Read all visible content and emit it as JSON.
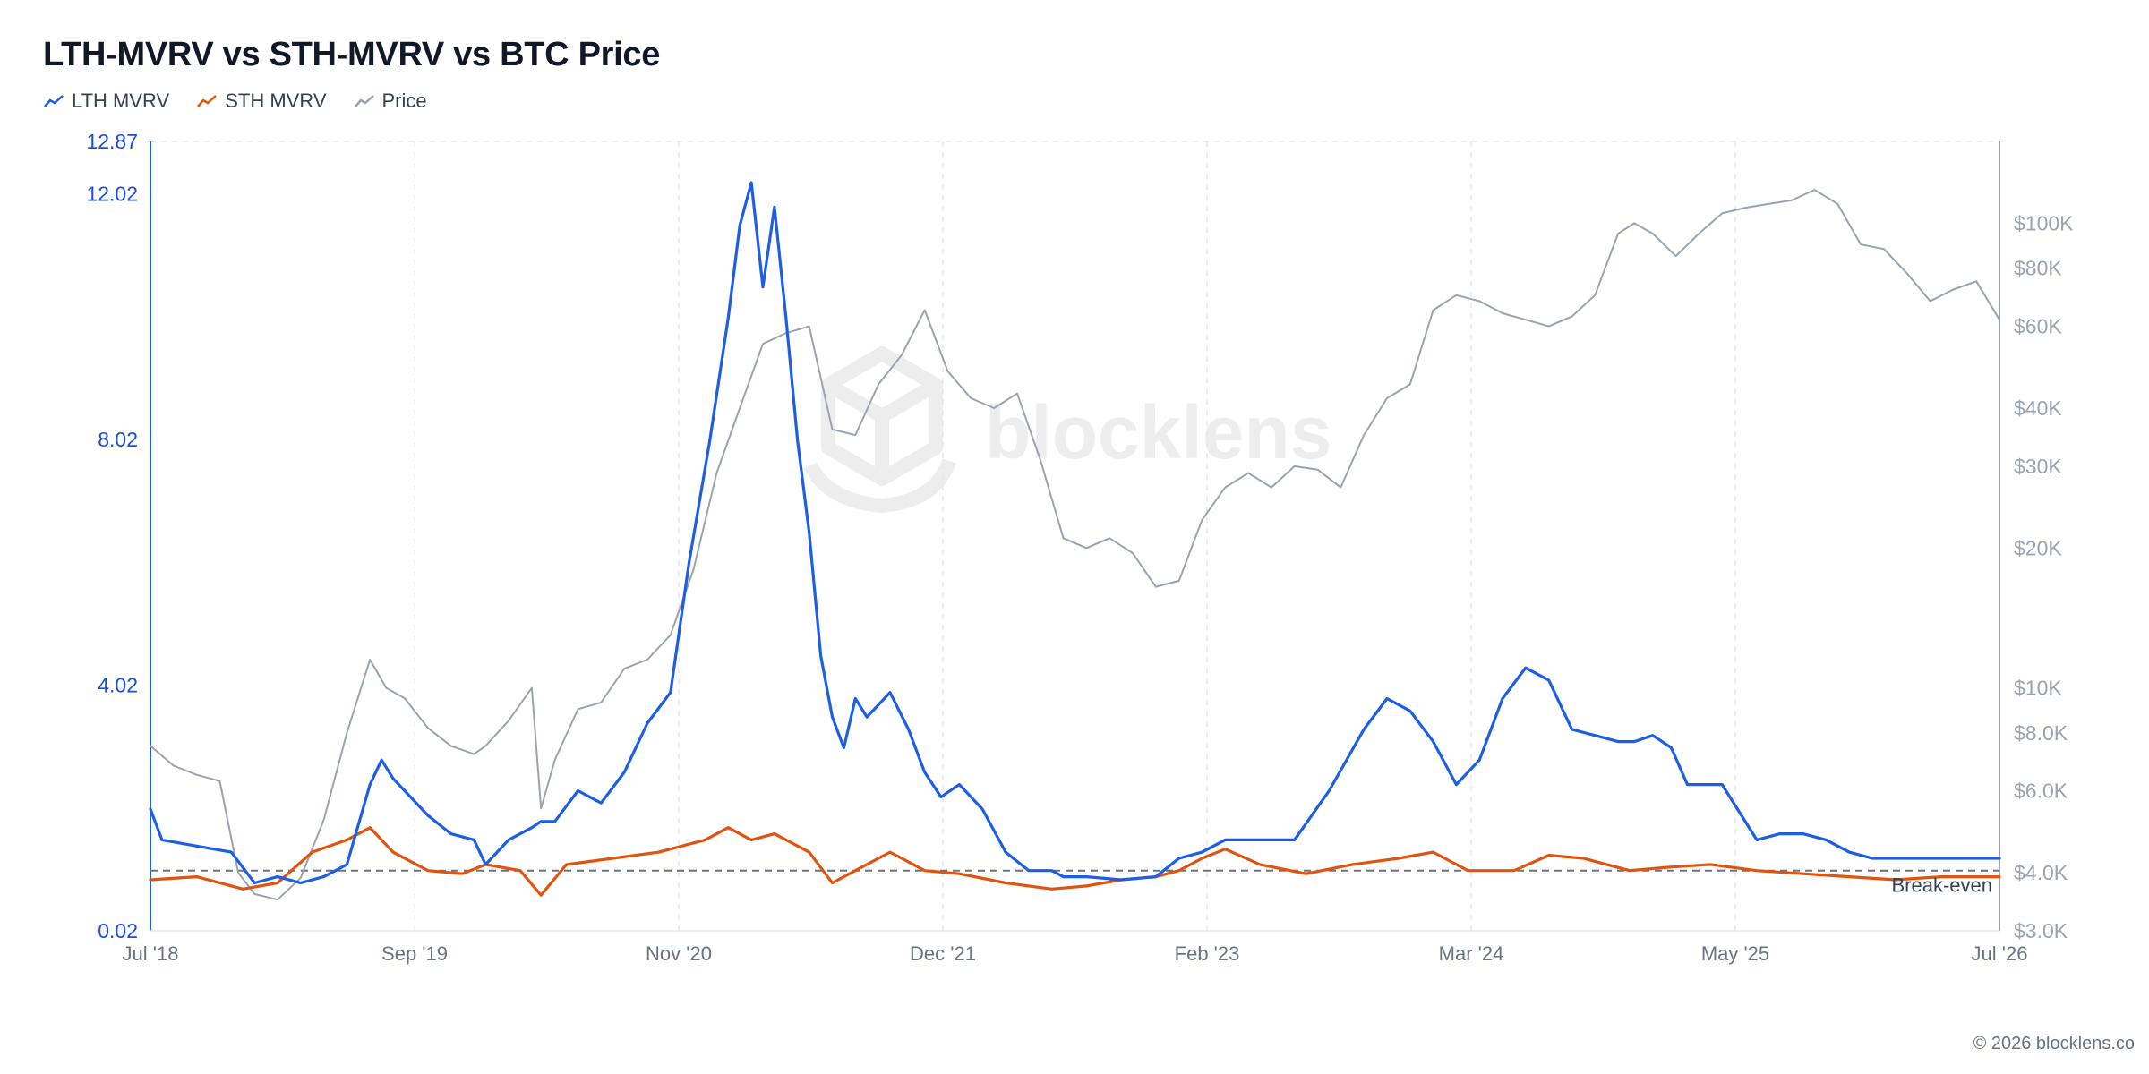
{
  "chart_data": {
    "type": "line",
    "title": "LTH-MVRV vs STH-MVRV vs BTC Price",
    "x_ticks": [
      "Jul '18",
      "Sep '19",
      "Nov '20",
      "Dec '21",
      "Feb '23",
      "Mar '24",
      "May '25",
      "Jul '26"
    ],
    "left_axis": {
      "ticks": [
        "0.02",
        "4.02",
        "8.02",
        "12.02",
        "12.87"
      ],
      "range": [
        0.02,
        12.87
      ],
      "color": "#1d4ed8"
    },
    "right_axis": {
      "scale": "log",
      "ticks": [
        "$3.0K",
        "$4.0K",
        "$6.0K",
        "$8.0K",
        "$10K",
        "$20K",
        "$30K",
        "$40K",
        "$60K",
        "$80K",
        "$100K"
      ],
      "range": [
        3000,
        150000
      ]
    },
    "break_even": {
      "label": "Break-even",
      "value": 1.0
    },
    "series": [
      {
        "name": "LTH MVRV",
        "color": "#1d5ee6",
        "axis": "left",
        "x": [
          2018.5,
          2018.55,
          2018.7,
          2018.85,
          2018.95,
          2019.05,
          2019.15,
          2019.25,
          2019.35,
          2019.45,
          2019.5,
          2019.55,
          2019.6,
          2019.7,
          2019.8,
          2019.9,
          2019.95,
          2020.05,
          2020.15,
          2020.19,
          2020.25,
          2020.35,
          2020.45,
          2020.55,
          2020.65,
          2020.75,
          2020.83,
          2020.92,
          2021.0,
          2021.05,
          2021.1,
          2021.15,
          2021.2,
          2021.25,
          2021.3,
          2021.35,
          2021.4,
          2021.45,
          2021.5,
          2021.55,
          2021.6,
          2021.7,
          2021.78,
          2021.85,
          2021.92,
          2022.0,
          2022.1,
          2022.2,
          2022.3,
          2022.4,
          2022.45,
          2022.55,
          2022.7,
          2022.85,
          2022.95,
          2023.05,
          2023.15,
          2023.3,
          2023.45,
          2023.6,
          2023.75,
          2023.85,
          2023.95,
          2024.05,
          2024.15,
          2024.25,
          2024.35,
          2024.45,
          2024.55,
          2024.65,
          2024.75,
          2024.85,
          2024.92,
          2025.0,
          2025.08,
          2025.15,
          2025.3,
          2025.45,
          2025.55,
          2025.65,
          2025.75,
          2025.85,
          2025.95,
          2026.05,
          2026.15,
          2026.25,
          2026.35,
          2026.42,
          2026.5
        ],
        "values": [
          2.0,
          1.5,
          1.4,
          1.3,
          0.8,
          0.9,
          0.8,
          0.9,
          1.1,
          2.4,
          2.8,
          2.5,
          2.3,
          1.9,
          1.6,
          1.5,
          1.1,
          1.5,
          1.7,
          1.8,
          1.8,
          2.3,
          2.1,
          2.6,
          3.4,
          3.9,
          6.0,
          8.0,
          10.0,
          11.5,
          12.2,
          10.5,
          11.8,
          10.0,
          8.0,
          6.5,
          4.5,
          3.5,
          3.0,
          3.8,
          3.5,
          3.9,
          3.3,
          2.6,
          2.2,
          2.4,
          2.0,
          1.3,
          1.0,
          1.0,
          0.9,
          0.9,
          0.85,
          0.9,
          1.2,
          1.3,
          1.5,
          1.5,
          1.5,
          2.3,
          3.3,
          3.8,
          3.6,
          3.1,
          2.4,
          2.8,
          3.8,
          4.3,
          4.1,
          3.3,
          3.2,
          3.1,
          3.1,
          3.2,
          3.0,
          2.4,
          2.4,
          1.5,
          1.6,
          1.6,
          1.5,
          1.3,
          1.2,
          1.2,
          1.2,
          1.2,
          1.2,
          1.2,
          1.2
        ]
      },
      {
        "name": "STH MVRV",
        "color": "#e0540f",
        "axis": "left",
        "x": [
          2018.5,
          2018.7,
          2018.9,
          2019.05,
          2019.2,
          2019.35,
          2019.45,
          2019.55,
          2019.7,
          2019.85,
          2019.95,
          2020.1,
          2020.19,
          2020.3,
          2020.5,
          2020.7,
          2020.9,
          2021.0,
          2021.1,
          2021.2,
          2021.35,
          2021.45,
          2021.55,
          2021.7,
          2021.85,
          2022.0,
          2022.2,
          2022.4,
          2022.55,
          2022.7,
          2022.85,
          2022.95,
          2023.05,
          2023.15,
          2023.3,
          2023.5,
          2023.7,
          2023.9,
          2024.05,
          2024.2,
          2024.4,
          2024.55,
          2024.7,
          2024.9,
          2025.05,
          2025.25,
          2025.45,
          2025.65,
          2025.85,
          2026.05,
          2026.25,
          2026.5
        ],
        "values": [
          0.85,
          0.9,
          0.7,
          0.8,
          1.3,
          1.5,
          1.7,
          1.3,
          1.0,
          0.95,
          1.1,
          1.0,
          0.6,
          1.1,
          1.2,
          1.3,
          1.5,
          1.7,
          1.5,
          1.6,
          1.3,
          0.8,
          1.0,
          1.3,
          1.0,
          0.95,
          0.8,
          0.7,
          0.75,
          0.85,
          0.9,
          1.0,
          1.2,
          1.35,
          1.1,
          0.95,
          1.1,
          1.2,
          1.3,
          1.0,
          1.0,
          1.25,
          1.2,
          1.0,
          1.05,
          1.1,
          1.0,
          0.95,
          0.9,
          0.85,
          0.9,
          0.9
        ]
      },
      {
        "name": "Price",
        "color": "#9ca3af",
        "axis": "right",
        "x": [
          2018.5,
          2018.6,
          2018.7,
          2018.8,
          2018.88,
          2018.95,
          2019.05,
          2019.15,
          2019.25,
          2019.35,
          2019.45,
          2019.52,
          2019.6,
          2019.7,
          2019.8,
          2019.9,
          2019.95,
          2020.05,
          2020.15,
          2020.19,
          2020.25,
          2020.35,
          2020.45,
          2020.55,
          2020.65,
          2020.75,
          2020.85,
          2020.95,
          2021.05,
          2021.15,
          2021.25,
          2021.35,
          2021.45,
          2021.55,
          2021.65,
          2021.75,
          2021.85,
          2021.95,
          2022.05,
          2022.15,
          2022.25,
          2022.35,
          2022.45,
          2022.55,
          2022.65,
          2022.75,
          2022.85,
          2022.95,
          2023.05,
          2023.15,
          2023.25,
          2023.35,
          2023.45,
          2023.55,
          2023.65,
          2023.75,
          2023.85,
          2023.95,
          2024.05,
          2024.15,
          2024.25,
          2024.35,
          2024.45,
          2024.55,
          2024.65,
          2024.75,
          2024.85,
          2024.92,
          2025.0,
          2025.1,
          2025.2,
          2025.3,
          2025.4,
          2025.5,
          2025.6,
          2025.7,
          2025.8,
          2025.9,
          2026.0,
          2026.1,
          2026.2,
          2026.3,
          2026.4,
          2026.5
        ],
        "values": [
          7500,
          6800,
          6500,
          6300,
          4000,
          3600,
          3500,
          3900,
          5200,
          8000,
          11500,
          10000,
          9500,
          8200,
          7500,
          7200,
          7500,
          8500,
          10000,
          5500,
          7000,
          9000,
          9300,
          11000,
          11500,
          13000,
          18000,
          29000,
          40000,
          55000,
          58000,
          60000,
          36000,
          35000,
          45000,
          52000,
          65000,
          48000,
          42000,
          40000,
          43000,
          31000,
          21000,
          20000,
          21000,
          19500,
          16500,
          17000,
          23000,
          27000,
          29000,
          27000,
          30000,
          29500,
          27000,
          35000,
          42000,
          45000,
          65000,
          70000,
          68000,
          64000,
          62000,
          60000,
          63000,
          70000,
          95000,
          100000,
          95000,
          85000,
          95000,
          105000,
          108000,
          110000,
          112000,
          118000,
          110000,
          90000,
          88000,
          78000,
          68000,
          72000,
          75000,
          62000
        ]
      }
    ]
  },
  "watermark": "blocklens",
  "footer": "© 2026 blocklens.co"
}
